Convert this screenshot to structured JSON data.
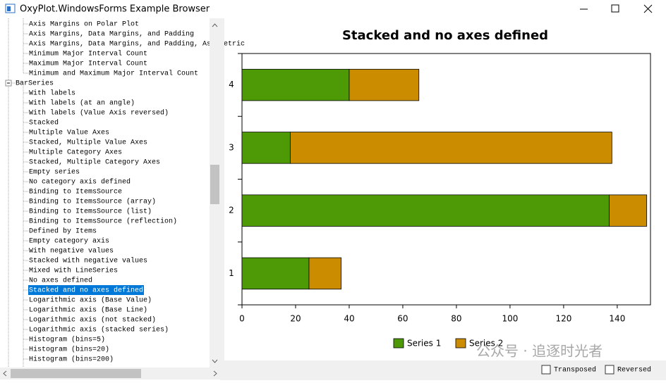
{
  "window": {
    "title": "OxyPlot.WindowsForms Example Browser"
  },
  "tree": {
    "items": [
      "Axis Margins on Polar Plot",
      "Axis Margins, Data Margins, and Padding",
      "Axis Margins, Data Margins, and Padding, Asymmetric",
      "Minimum Major Interval Count",
      "Maximum Major Interval Count",
      "Minimum and Maximum Major Interval Count"
    ],
    "group": "BarSeries",
    "children": [
      "With labels",
      "With labels (at an angle)",
      "With labels (Value Axis reversed)",
      "Stacked",
      "Multiple Value Axes",
      "Stacked, Multiple Value Axes",
      "Multiple Category Axes",
      "Stacked, Multiple Category Axes",
      "Empty series",
      "No category axis defined",
      "Binding to ItemsSource",
      "Binding to ItemsSource (array)",
      "Binding to ItemsSource (list)",
      "Binding to ItemsSource (reflection)",
      "Defined by Items",
      "Empty category axis",
      "With negative values",
      "Stacked with negative values",
      "Mixed with LineSeries",
      "No axes defined",
      "Stacked and no axes defined",
      "Logarithmic axis (Base Value)",
      "Logarithmic axis (Base Line)",
      "Logarithmic axis (not stacked)",
      "Logarithmic axis (stacked series)",
      "Histogram (bins=5)",
      "Histogram (bins=20)",
      "Histogram (bins=200)"
    ],
    "selected": 20
  },
  "chart_data": {
    "type": "stacked-barh",
    "title": "Stacked and no axes defined",
    "categories": [
      "1",
      "2",
      "3",
      "4"
    ],
    "series": [
      {
        "name": "Series 1",
        "color": "#4e9a06",
        "values": [
          25,
          137,
          18,
          40
        ]
      },
      {
        "name": "Series 2",
        "color": "#cc8c00",
        "values": [
          12,
          14,
          120,
          26
        ]
      }
    ],
    "xlim": [
      0,
      152.4
    ],
    "xticks": [
      0,
      20,
      40,
      60,
      80,
      100,
      120,
      140
    ],
    "legend": "bottom"
  },
  "options": {
    "transposed": "Transposed",
    "reversed": "Reversed"
  },
  "watermark": "公众号 · 追逐时光者"
}
